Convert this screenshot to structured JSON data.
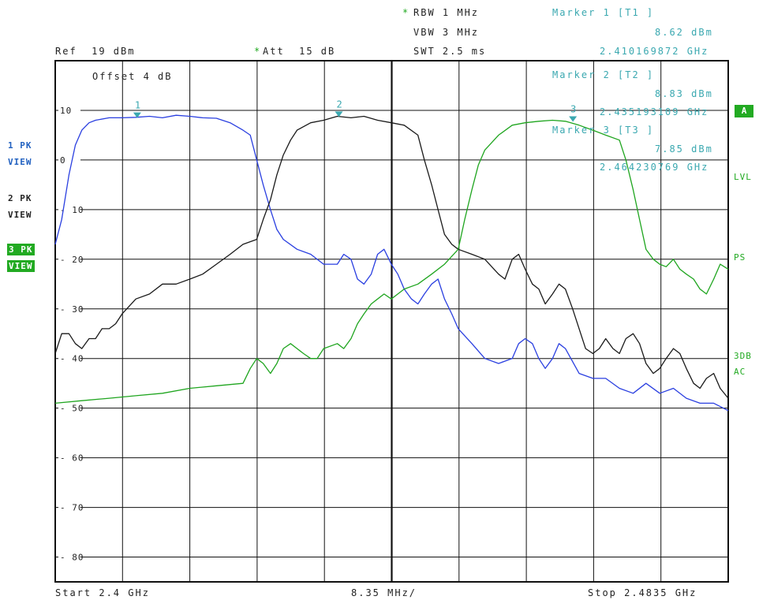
{
  "header": {
    "ref": "Ref  19 dBm",
    "att_star": "*",
    "att": "Att  15 dB",
    "rbw_star": "*",
    "rbw": "RBW 1 MHz",
    "vbw": "VBW 3 MHz",
    "swt": "SWT 2.5 ms",
    "offset": "Offset  4 dB"
  },
  "markers": [
    {
      "title": "Marker 1 [T1 ]",
      "level": "8.62 dBm",
      "freq": "2.410169872 GHz",
      "label": "1"
    },
    {
      "title": "Marker 2 [T2 ]",
      "level": "8.83 dBm",
      "freq": "2.435193109 GHz",
      "label": "2"
    },
    {
      "title": "Marker 3 [T3 ]",
      "level": "7.85 dBm",
      "freq": "2.464230769 GHz",
      "label": "3"
    }
  ],
  "trace_labels": [
    {
      "l1": "1 PK",
      "l2": "VIEW"
    },
    {
      "l1": "2 PK",
      "l2": "VIEW"
    },
    {
      "l1": "3 PK",
      "l2": "VIEW"
    }
  ],
  "right_labels": {
    "a": "A",
    "lvl": "LVL",
    "ps": "PS",
    "db3": "3DB",
    "ac": "AC"
  },
  "footer": {
    "start": "Start 2.4 GHz",
    "span_div": "8.35 MHz/",
    "stop": "Stop 2.4835 GHz"
  },
  "colors": {
    "trace1": "#2a3fe0",
    "trace2": "#1a1a1a",
    "trace3": "#1fa51f",
    "marker": "#3aa8b0",
    "grid": "#111111"
  },
  "chart_data": {
    "type": "line",
    "xlim": [
      2.4,
      2.4835
    ],
    "ylim": [
      -85,
      20
    ],
    "x_unit": "GHz",
    "y_unit": "dBm",
    "y_ticks": [
      10,
      0,
      -10,
      -20,
      -30,
      -40,
      -50,
      -60,
      -70,
      -80
    ],
    "grid": true,
    "series": [
      {
        "name": "1 PK VIEW",
        "color": "#2a3fe0",
        "marker_label": "1",
        "marker": [
          2.41017,
          8.62
        ],
        "points": [
          [
            2.4,
            -17
          ],
          [
            2.4008,
            -12
          ],
          [
            2.4017,
            -3
          ],
          [
            2.4025,
            3
          ],
          [
            2.4033,
            6
          ],
          [
            2.4042,
            7.5
          ],
          [
            2.405,
            8
          ],
          [
            2.4067,
            8.5
          ],
          [
            2.4083,
            8.5
          ],
          [
            2.41,
            8.6
          ],
          [
            2.4117,
            8.8
          ],
          [
            2.4133,
            8.5
          ],
          [
            2.415,
            9
          ],
          [
            2.4167,
            8.8
          ],
          [
            2.4183,
            8.5
          ],
          [
            2.42,
            8.4
          ],
          [
            2.4217,
            7.5
          ],
          [
            2.4233,
            6
          ],
          [
            2.4242,
            5
          ],
          [
            2.425,
            0
          ],
          [
            2.4258,
            -5
          ],
          [
            2.4267,
            -10
          ],
          [
            2.4275,
            -14
          ],
          [
            2.4283,
            -16
          ],
          [
            2.43,
            -18
          ],
          [
            2.4317,
            -19
          ],
          [
            2.4333,
            -21
          ],
          [
            2.435,
            -21
          ],
          [
            2.4358,
            -19
          ],
          [
            2.4367,
            -20
          ],
          [
            2.4375,
            -24
          ],
          [
            2.4383,
            -25
          ],
          [
            2.4392,
            -23
          ],
          [
            2.44,
            -19
          ],
          [
            2.4408,
            -18
          ],
          [
            2.4417,
            -21
          ],
          [
            2.4425,
            -23
          ],
          [
            2.4433,
            -26
          ],
          [
            2.4442,
            -28
          ],
          [
            2.445,
            -29
          ],
          [
            2.4458,
            -27
          ],
          [
            2.4467,
            -25
          ],
          [
            2.4475,
            -24
          ],
          [
            2.4483,
            -28
          ],
          [
            2.4492,
            -31
          ],
          [
            2.45,
            -34
          ],
          [
            2.4517,
            -37
          ],
          [
            2.4533,
            -40
          ],
          [
            2.455,
            -41
          ],
          [
            2.4567,
            -40
          ],
          [
            2.4575,
            -37
          ],
          [
            2.4583,
            -36
          ],
          [
            2.4592,
            -37
          ],
          [
            2.46,
            -40
          ],
          [
            2.4608,
            -42
          ],
          [
            2.4617,
            -40
          ],
          [
            2.4625,
            -37
          ],
          [
            2.4633,
            -38
          ],
          [
            2.465,
            -43
          ],
          [
            2.4667,
            -44
          ],
          [
            2.4683,
            -44
          ],
          [
            2.47,
            -46
          ],
          [
            2.4717,
            -47
          ],
          [
            2.4733,
            -45
          ],
          [
            2.475,
            -47
          ],
          [
            2.4767,
            -46
          ],
          [
            2.4783,
            -48
          ],
          [
            2.48,
            -49
          ],
          [
            2.4817,
            -49
          ],
          [
            2.4835,
            -50.5
          ]
        ]
      },
      {
        "name": "2 PK VIEW",
        "color": "#1a1a1a",
        "marker_label": "2",
        "marker": [
          2.43519,
          8.83
        ],
        "points": [
          [
            2.4,
            -39
          ],
          [
            2.4008,
            -35
          ],
          [
            2.4017,
            -35
          ],
          [
            2.4025,
            -37
          ],
          [
            2.4033,
            -38
          ],
          [
            2.4042,
            -36
          ],
          [
            2.405,
            -36
          ],
          [
            2.4058,
            -34
          ],
          [
            2.4067,
            -34
          ],
          [
            2.4075,
            -33
          ],
          [
            2.4083,
            -31
          ],
          [
            2.41,
            -28
          ],
          [
            2.4117,
            -27
          ],
          [
            2.4133,
            -25
          ],
          [
            2.415,
            -25
          ],
          [
            2.4167,
            -24
          ],
          [
            2.4183,
            -23
          ],
          [
            2.42,
            -21
          ],
          [
            2.4217,
            -19
          ],
          [
            2.4233,
            -17
          ],
          [
            2.425,
            -16
          ],
          [
            2.4258,
            -12
          ],
          [
            2.4267,
            -8
          ],
          [
            2.4275,
            -3
          ],
          [
            2.4283,
            1
          ],
          [
            2.4292,
            4
          ],
          [
            2.43,
            6
          ],
          [
            2.4317,
            7.5
          ],
          [
            2.4333,
            8
          ],
          [
            2.435,
            8.8
          ],
          [
            2.4367,
            8.5
          ],
          [
            2.4383,
            8.8
          ],
          [
            2.44,
            8
          ],
          [
            2.4417,
            7.5
          ],
          [
            2.4433,
            7
          ],
          [
            2.445,
            5
          ],
          [
            2.4458,
            0
          ],
          [
            2.4467,
            -5
          ],
          [
            2.4475,
            -10
          ],
          [
            2.4483,
            -15
          ],
          [
            2.4492,
            -17
          ],
          [
            2.45,
            -18
          ],
          [
            2.4517,
            -19
          ],
          [
            2.4533,
            -20
          ],
          [
            2.455,
            -23
          ],
          [
            2.4558,
            -24
          ],
          [
            2.4567,
            -20
          ],
          [
            2.4575,
            -19
          ],
          [
            2.4583,
            -22
          ],
          [
            2.4592,
            -25
          ],
          [
            2.46,
            -26
          ],
          [
            2.4608,
            -29
          ],
          [
            2.4617,
            -27
          ],
          [
            2.4625,
            -25
          ],
          [
            2.4633,
            -26
          ],
          [
            2.4642,
            -30
          ],
          [
            2.465,
            -34
          ],
          [
            2.4658,
            -38
          ],
          [
            2.4667,
            -39
          ],
          [
            2.4675,
            -38
          ],
          [
            2.4683,
            -36
          ],
          [
            2.4692,
            -38
          ],
          [
            2.47,
            -39
          ],
          [
            2.4708,
            -36
          ],
          [
            2.4717,
            -35
          ],
          [
            2.4725,
            -37
          ],
          [
            2.4733,
            -41
          ],
          [
            2.4742,
            -43
          ],
          [
            2.475,
            -42
          ],
          [
            2.4758,
            -40
          ],
          [
            2.4767,
            -38
          ],
          [
            2.4775,
            -39
          ],
          [
            2.4783,
            -42
          ],
          [
            2.4792,
            -45
          ],
          [
            2.48,
            -46
          ],
          [
            2.4808,
            -44
          ],
          [
            2.4817,
            -43
          ],
          [
            2.4825,
            -46
          ],
          [
            2.4835,
            -48
          ]
        ]
      },
      {
        "name": "3 PK VIEW",
        "color": "#1fa51f",
        "marker_label": "3",
        "marker": [
          2.46423,
          7.85
        ],
        "points": [
          [
            2.4,
            -49
          ],
          [
            2.4033,
            -48.5
          ],
          [
            2.4067,
            -48
          ],
          [
            2.41,
            -47.5
          ],
          [
            2.4133,
            -47
          ],
          [
            2.4167,
            -46
          ],
          [
            2.42,
            -45.5
          ],
          [
            2.4233,
            -45
          ],
          [
            2.4242,
            -42
          ],
          [
            2.425,
            -40
          ],
          [
            2.4258,
            -41
          ],
          [
            2.4267,
            -43
          ],
          [
            2.4275,
            -41
          ],
          [
            2.4283,
            -38
          ],
          [
            2.4292,
            -37
          ],
          [
            2.43,
            -38
          ],
          [
            2.4308,
            -39
          ],
          [
            2.4317,
            -40
          ],
          [
            2.4325,
            -40
          ],
          [
            2.4333,
            -38
          ],
          [
            2.435,
            -37
          ],
          [
            2.4358,
            -38
          ],
          [
            2.4367,
            -36
          ],
          [
            2.4375,
            -33
          ],
          [
            2.4383,
            -31
          ],
          [
            2.4392,
            -29
          ],
          [
            2.44,
            -28
          ],
          [
            2.4408,
            -27
          ],
          [
            2.4417,
            -28
          ],
          [
            2.4425,
            -27
          ],
          [
            2.4433,
            -26
          ],
          [
            2.445,
            -25
          ],
          [
            2.4467,
            -23
          ],
          [
            2.4483,
            -21
          ],
          [
            2.45,
            -18
          ],
          [
            2.4508,
            -12
          ],
          [
            2.4517,
            -6
          ],
          [
            2.4525,
            -1
          ],
          [
            2.4533,
            2
          ],
          [
            2.455,
            5
          ],
          [
            2.4567,
            7
          ],
          [
            2.4583,
            7.5
          ],
          [
            2.46,
            7.8
          ],
          [
            2.4617,
            8
          ],
          [
            2.4633,
            7.8
          ],
          [
            2.465,
            7
          ],
          [
            2.4667,
            6
          ],
          [
            2.4683,
            5
          ],
          [
            2.47,
            4
          ],
          [
            2.4708,
            0
          ],
          [
            2.4717,
            -6
          ],
          [
            2.4725,
            -12
          ],
          [
            2.4733,
            -18
          ],
          [
            2.4742,
            -20
          ],
          [
            2.475,
            -21
          ],
          [
            2.4758,
            -21.5
          ],
          [
            2.4767,
            -20
          ],
          [
            2.4775,
            -22
          ],
          [
            2.4783,
            -23
          ],
          [
            2.4792,
            -24
          ],
          [
            2.48,
            -26
          ],
          [
            2.4808,
            -27
          ],
          [
            2.4817,
            -24
          ],
          [
            2.4825,
            -21
          ],
          [
            2.4835,
            -22
          ]
        ]
      }
    ]
  }
}
